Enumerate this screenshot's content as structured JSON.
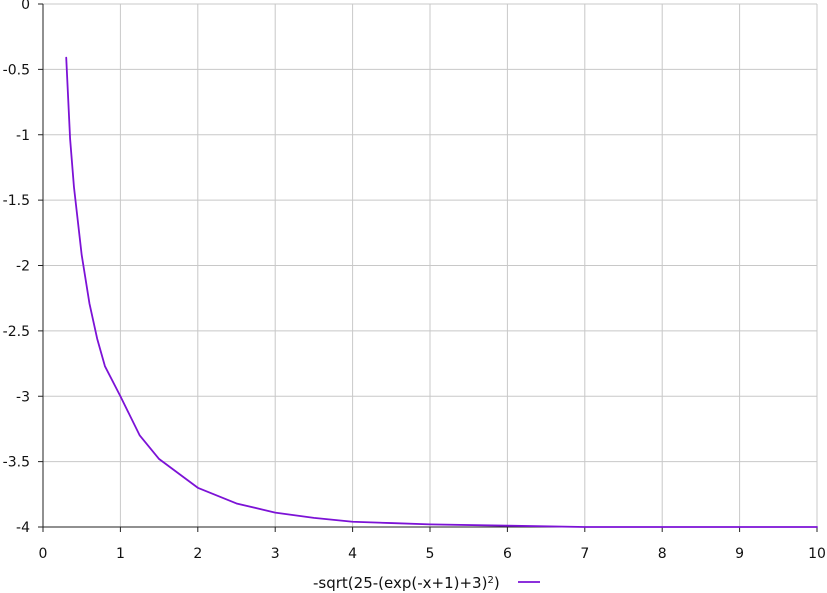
{
  "chart_data": {
    "type": "line",
    "title": "",
    "xlabel": "",
    "ylabel": "",
    "xlim": [
      0,
      10
    ],
    "ylim": [
      -4,
      0
    ],
    "grid": true,
    "legend_position": "bottom-center",
    "x_ticks": [
      "0",
      "1",
      "2",
      "3",
      "4",
      "5",
      "6",
      "7",
      "8",
      "9",
      "10"
    ],
    "y_ticks": [
      "0",
      "-0.5",
      "-1",
      "-1.5",
      "-2",
      "-2.5",
      "-3",
      "-3.5",
      "-4"
    ],
    "series": [
      {
        "name": "-sqrt(25-(exp(-x+1)+3)2)",
        "legend": {
          "prefix": "-sqrt(25-(exp(-x+1)+3)",
          "superscript": "2",
          "suffix": ")"
        },
        "color": "#7c12d6",
        "x": [
          0.3,
          0.35,
          0.4,
          0.5,
          0.6,
          0.7,
          0.8,
          1,
          1.25,
          1.5,
          2,
          2.5,
          3,
          3.5,
          4,
          4.5,
          5,
          6,
          7,
          8,
          9,
          10
        ],
        "y": [
          -0.41,
          -1.03,
          -1.4,
          -1.92,
          -2.29,
          -2.56,
          -2.77,
          -3,
          -3.3,
          -3.48,
          -3.7,
          -3.82,
          -3.89,
          -3.93,
          -3.96,
          -3.97,
          -3.98,
          -3.99,
          -4,
          -4,
          -4,
          -4
        ]
      }
    ],
    "colors": {
      "grid": "#c8c8c8",
      "axis": "#222222",
      "series": "#7c12d6"
    }
  }
}
